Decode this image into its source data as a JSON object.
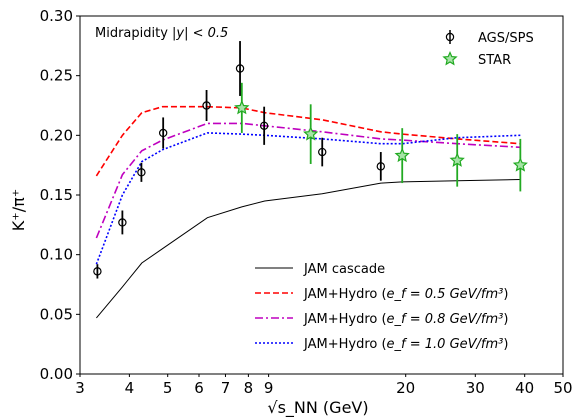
{
  "chart_data": {
    "type": "line",
    "title": "",
    "xlabel": "√s_NN (GeV)",
    "ylabel": "K⁺/π⁺",
    "xscale": "log",
    "xlim": [
      3,
      50
    ],
    "ylim": [
      0,
      0.3
    ],
    "xticks": [
      3,
      4,
      5,
      6,
      7,
      8,
      9,
      20,
      30,
      40,
      50
    ],
    "xtick_labels": [
      "3",
      "4",
      "5",
      "6",
      "7",
      "8",
      "9",
      "20",
      "30",
      "40",
      "50"
    ],
    "yticks": [
      0.0,
      0.05,
      0.1,
      0.15,
      0.2,
      0.25,
      0.3
    ],
    "ytick_labels": [
      "0.00",
      "0.05",
      "0.10",
      "0.15",
      "0.20",
      "0.25",
      "0.30"
    ],
    "annotation": {
      "prefix": "Midrapidity ",
      "math": "|y| < 0.5"
    },
    "legend_upper": [
      {
        "label": "AGS/SPS",
        "marker": "circle-open"
      },
      {
        "label": "STAR",
        "marker": "star"
      }
    ],
    "legend_lower": [
      {
        "label": "JAM cascade"
      },
      {
        "label": "JAM+Hydro (",
        "math": "e_f = 0.5 GeV/fm³",
        "suffix": ")"
      },
      {
        "label": "JAM+Hydro (",
        "math": "e_f = 0.8 GeV/fm³",
        "suffix": ")"
      },
      {
        "label": "JAM+Hydro (",
        "math": "e_f = 1.0 GeV/fm³",
        "suffix": ")"
      }
    ],
    "series": [
      {
        "name": "JAM cascade",
        "style": "solid",
        "color": "#000000",
        "x": [
          3.3,
          3.84,
          4.3,
          4.85,
          6.3,
          7.7,
          8.8,
          12.3,
          17.3,
          19.6,
          27,
          39
        ],
        "y": [
          0.047,
          0.073,
          0.093,
          0.105,
          0.131,
          0.14,
          0.145,
          0.151,
          0.16,
          0.161,
          0.162,
          0.163
        ]
      },
      {
        "name": "JAM+Hydro (e_f = 0.5 GeV/fm³)",
        "style": "dashed",
        "color": "#ff0000",
        "x": [
          3.3,
          3.84,
          4.3,
          4.85,
          6.3,
          7.7,
          8.8,
          12.3,
          17.3,
          19.6,
          27,
          39
        ],
        "y": [
          0.166,
          0.2,
          0.219,
          0.224,
          0.224,
          0.223,
          0.219,
          0.213,
          0.203,
          0.201,
          0.197,
          0.193
        ]
      },
      {
        "name": "JAM+Hydro (e_f = 0.8 GeV/fm³)",
        "style": "dashdot",
        "color": "#bf00bf",
        "x": [
          3.3,
          3.84,
          4.3,
          4.85,
          6.3,
          7.7,
          8.8,
          12.3,
          17.3,
          19.6,
          27,
          39
        ],
        "y": [
          0.114,
          0.167,
          0.187,
          0.196,
          0.21,
          0.21,
          0.208,
          0.203,
          0.197,
          0.196,
          0.193,
          0.19
        ]
      },
      {
        "name": "JAM+Hydro (e_f = 1.0 GeV/fm³)",
        "style": "dotted",
        "color": "#0000ff",
        "x": [
          3.3,
          3.84,
          4.3,
          4.85,
          6.3,
          7.7,
          8.8,
          12.3,
          17.3,
          19.6,
          27,
          39
        ],
        "y": [
          0.092,
          0.15,
          0.178,
          0.188,
          0.202,
          0.201,
          0.2,
          0.197,
          0.193,
          0.193,
          0.198,
          0.2
        ]
      }
    ],
    "points": [
      {
        "name": "AGS/SPS",
        "marker": "circle-open",
        "color": "#000000",
        "x": [
          3.32,
          3.84,
          4.29,
          4.87,
          6.27,
          7.62,
          8.77,
          12.3,
          17.3
        ],
        "y": [
          0.086,
          0.127,
          0.169,
          0.202,
          0.225,
          0.256,
          0.208,
          0.186,
          0.174
        ],
        "yerr": [
          0.006,
          0.01,
          0.008,
          0.013,
          0.013,
          0.023,
          0.016,
          0.012,
          0.012
        ]
      },
      {
        "name": "STAR",
        "marker": "star",
        "color": "#22aa22",
        "x": [
          7.7,
          11.5,
          19.6,
          27,
          39
        ],
        "y": [
          0.223,
          0.201,
          0.183,
          0.179,
          0.175
        ],
        "yerr": [
          0.021,
          0.025,
          0.023,
          0.022,
          0.022
        ]
      }
    ]
  }
}
